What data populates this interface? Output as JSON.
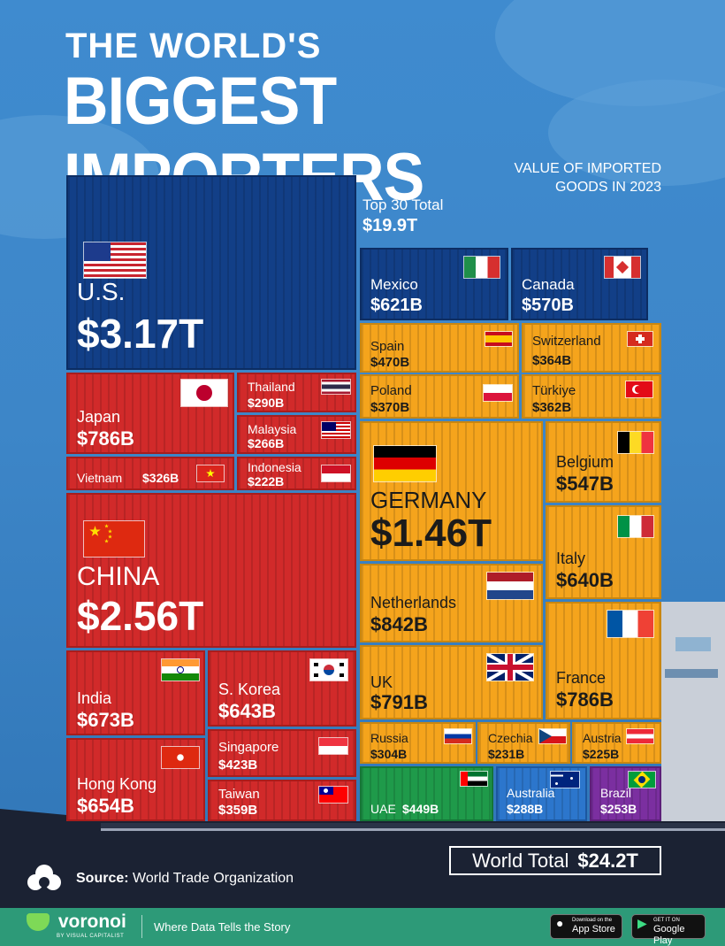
{
  "title": {
    "line1": "THE WORLD'S",
    "line2": "BIGGEST IMPORTERS"
  },
  "subtitle": [
    "VALUE OF IMPORTED",
    "GOODS IN 2023"
  ],
  "top30": {
    "label": "Top 30 Total",
    "value": "$19.9T"
  },
  "countries": {
    "us": {
      "name": "U.S.",
      "value": "$3.17T"
    },
    "china": {
      "name": "CHINA",
      "value": "$2.56T"
    },
    "germany": {
      "name": "GERMANY",
      "value": "$1.46T"
    },
    "netherlands": {
      "name": "Netherlands",
      "value": "$842B"
    },
    "uk": {
      "name": "UK",
      "value": "$791B"
    },
    "japan": {
      "name": "Japan",
      "value": "$786B"
    },
    "france": {
      "name": "France",
      "value": "$786B"
    },
    "india": {
      "name": "India",
      "value": "$673B"
    },
    "hongkong": {
      "name": "Hong Kong",
      "value": "$654B"
    },
    "skorea": {
      "name": "S. Korea",
      "value": "$643B"
    },
    "italy": {
      "name": "Italy",
      "value": "$640B"
    },
    "mexico": {
      "name": "Mexico",
      "value": "$621B"
    },
    "canada": {
      "name": "Canada",
      "value": "$570B"
    },
    "belgium": {
      "name": "Belgium",
      "value": "$547B"
    },
    "spain": {
      "name": "Spain",
      "value": "$470B"
    },
    "uae": {
      "name": "UAE",
      "value": "$449B"
    },
    "singapore": {
      "name": "Singapore",
      "value": "$423B"
    },
    "poland": {
      "name": "Poland",
      "value": "$370B"
    },
    "switzerland": {
      "name": "Switzerland",
      "value": "$364B"
    },
    "turkiye": {
      "name": "Türkiye",
      "value": "$362B"
    },
    "taiwan": {
      "name": "Taiwan",
      "value": "$359B"
    },
    "vietnam": {
      "name": "Vietnam",
      "value": "$326B"
    },
    "russia": {
      "name": "Russia",
      "value": "$304B"
    },
    "thailand": {
      "name": "Thailand",
      "value": "$290B"
    },
    "australia": {
      "name": "Australia",
      "value": "$288B"
    },
    "malaysia": {
      "name": "Malaysia",
      "value": "$266B"
    },
    "brazil": {
      "name": "Brazil",
      "value": "$253B"
    },
    "czechia": {
      "name": "Czechia",
      "value": "$231B"
    },
    "austria": {
      "name": "Austria",
      "value": "$225B"
    },
    "indonesia": {
      "name": "Indonesia",
      "value": "$222B"
    }
  },
  "world_total": {
    "label": "World Total",
    "value": "$24.2T"
  },
  "source": {
    "label": "Source:",
    "text": "World Trade Organization"
  },
  "footer": {
    "brand": "voronoi",
    "brand_sub": "BY VISUAL CAPITALIST",
    "tagline": "Where Data Tells the Story",
    "appstore": {
      "small": "Download on the",
      "big": "App Store"
    },
    "googleplay": {
      "small": "GET IT ON",
      "big": "Google Play"
    }
  },
  "colors": {
    "americas": "#123f87",
    "asia": "#d12a2a",
    "europe": "#f5a41c",
    "middle_east": "#1f9a4a",
    "oceania": "#2c76cc",
    "south_america": "#7b2fa0"
  }
}
